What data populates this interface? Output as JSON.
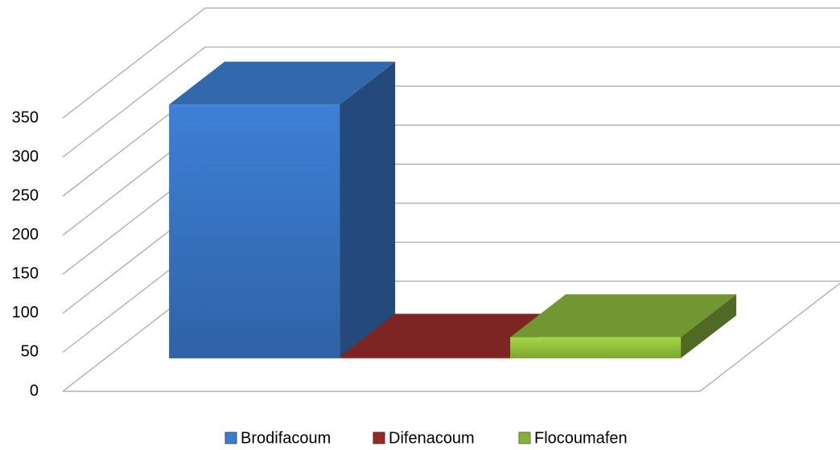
{
  "chart_data": {
    "type": "bar3d",
    "series": [
      {
        "name": "Brodifacoum",
        "color": "#3b7bcc",
        "values": [
          325
        ]
      },
      {
        "name": "Difenacoum",
        "color": "#932b28",
        "values": [
          2
        ]
      },
      {
        "name": "Flocoumafen",
        "color": "#86b03a",
        "values": [
          27
        ]
      }
    ],
    "ylim": [
      0,
      350
    ],
    "yticks": [
      0,
      50,
      100,
      150,
      200,
      250,
      300,
      350
    ],
    "grid": true,
    "legend": "bottom"
  }
}
